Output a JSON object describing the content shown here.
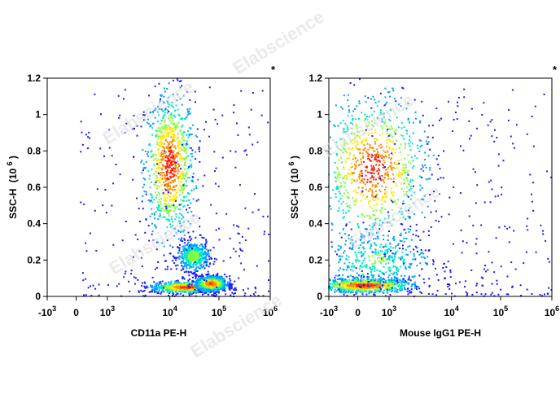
{
  "watermark_text": "Elabscience",
  "colors": {
    "density_scale": [
      "#1a1aff",
      "#00a0ff",
      "#00e5c8",
      "#7fff3a",
      "#ffe600",
      "#ff8c00",
      "#ff2200"
    ],
    "axis": "#000000",
    "watermark": "#d9d9d9"
  },
  "chart_data": [
    {
      "type": "scatter",
      "subtype": "flow-cytometry density plot",
      "xlabel": "CD11a PE-H",
      "ylabel_main": "SSC-H",
      "ylabel_unit": "(10",
      "ylabel_exp": "6",
      "ylabel_close": ")",
      "corner_mark": "*",
      "x_scale": "biexponential",
      "xlim": [
        -1000,
        1000000
      ],
      "ylim": [
        0,
        1.2
      ],
      "x_ticks": [
        {
          "base": "-10",
          "exp": "3",
          "value": -1000
        },
        {
          "base": "0",
          "exp": "",
          "value": 0
        },
        {
          "base": "10",
          "exp": "3",
          "value": 1000
        },
        {
          "base": "10",
          "exp": "4",
          "value": 10000
        },
        {
          "base": "10",
          "exp": "5",
          "value": 100000
        },
        {
          "base": "10",
          "exp": "6",
          "value": 1000000
        }
      ],
      "y_ticks": [
        "0",
        "0.2",
        "0.4",
        "0.6",
        "0.8",
        "1",
        "1.2"
      ],
      "populations": [
        {
          "name": "",
          "x_center": 10000,
          "y_center": 0.72,
          "x_spread": 0.16,
          "y_spread": 0.2,
          "peak_density": 1.0
        },
        {
          "name": "",
          "x_center": 30000,
          "y_center": 0.22,
          "x_spread": 0.1,
          "y_spread": 0.04,
          "peak_density": 0.55
        },
        {
          "name": "",
          "x_center": 22000,
          "y_center": 0.05,
          "x_spread": 0.22,
          "y_spread": 0.015,
          "peak_density": 1.0
        },
        {
          "name": "",
          "x_center": 70000,
          "y_center": 0.07,
          "x_spread": 0.1,
          "y_spread": 0.02,
          "peak_density": 0.95
        }
      ]
    },
    {
      "type": "scatter",
      "subtype": "flow-cytometry density plot",
      "xlabel": "Mouse IgG1 PE-H",
      "ylabel_main": "SSC-H",
      "ylabel_unit": "(10",
      "ylabel_exp": "6",
      "ylabel_close": ")",
      "corner_mark": "*",
      "x_scale": "biexponential",
      "xlim": [
        -1000,
        1000000
      ],
      "ylim": [
        0,
        1.2
      ],
      "x_ticks": [
        {
          "base": "-10",
          "exp": "3",
          "value": -1000
        },
        {
          "base": "0",
          "exp": "",
          "value": 0
        },
        {
          "base": "10",
          "exp": "3",
          "value": 1000
        },
        {
          "base": "10",
          "exp": "4",
          "value": 10000
        },
        {
          "base": "10",
          "exp": "5",
          "value": 100000
        },
        {
          "base": "10",
          "exp": "6",
          "value": 1000000
        }
      ],
      "y_ticks": [
        "0",
        "0.2",
        "0.4",
        "0.6",
        "0.8",
        "1",
        "1.2"
      ],
      "populations": [
        {
          "name": "",
          "x_center": 500,
          "y_center": 0.7,
          "x_spread": 0.35,
          "y_spread": 0.2,
          "peak_density": 1.0
        },
        {
          "name": "",
          "x_center": 250,
          "y_center": 0.06,
          "x_spread": 0.3,
          "y_spread": 0.02,
          "peak_density": 1.0
        },
        {
          "name": "",
          "x_center": 600,
          "y_center": 0.2,
          "x_spread": 0.35,
          "y_spread": 0.08,
          "peak_density": 0.45
        }
      ]
    }
  ]
}
